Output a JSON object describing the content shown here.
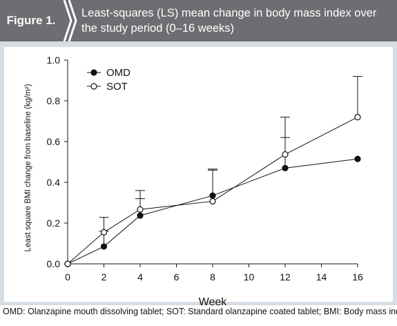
{
  "header": {
    "figure_label": "Figure 1.",
    "title": "Least-squares (LS) mean change in body mass index over the study period (0–16 weeks)"
  },
  "footnote": "OMD: Olanzapine mouth dissolving tablet; SOT: Standard olanzapine coated tablet; BMI: Body mass index.",
  "colors": {
    "header_bg": "#6d6e71",
    "panel_bg": "#d6dde4",
    "plot_bg": "#ffffff",
    "ink": "#111111"
  },
  "chart_data": {
    "type": "line",
    "title": "",
    "xlabel": "Week",
    "ylabel": "Least square BMI change from baseline (kg/m²)",
    "xlim": [
      0,
      16
    ],
    "ylim": [
      0.0,
      1.0
    ],
    "xticks": [
      "0",
      "2",
      "4",
      "6",
      "8",
      "10",
      "12",
      "14",
      "16"
    ],
    "yticks": [
      "0.0",
      "0.2",
      "0.4",
      "0.6",
      "0.8",
      "1.0"
    ],
    "grid": false,
    "legend_position": "top-left",
    "series": [
      {
        "name": "OMD",
        "marker": "filled-circle",
        "x": [
          0,
          2,
          4,
          8,
          12,
          16
        ],
        "y": [
          0.0,
          0.085,
          0.237,
          0.335,
          0.47,
          0.515
        ],
        "error_upper": [
          null,
          0.16,
          0.32,
          0.46,
          0.62,
          null
        ]
      },
      {
        "name": "SOT",
        "marker": "open-circle",
        "x": [
          0,
          2,
          4,
          8,
          12,
          16
        ],
        "y": [
          0.0,
          0.155,
          0.267,
          0.307,
          0.537,
          0.72
        ],
        "error_upper": [
          null,
          0.228,
          0.36,
          0.465,
          0.72,
          0.92
        ]
      }
    ]
  }
}
